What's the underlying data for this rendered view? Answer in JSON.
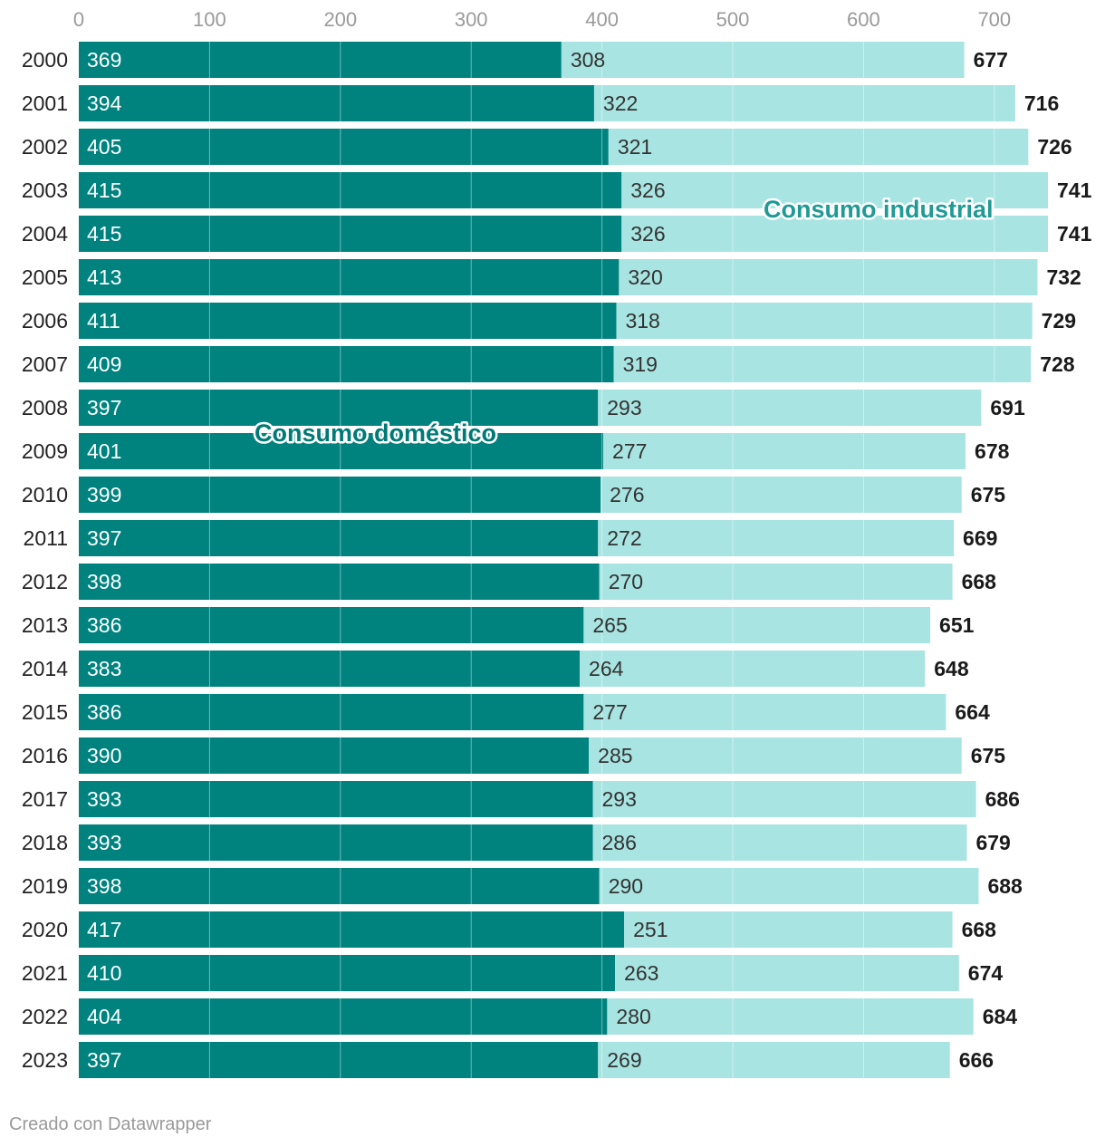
{
  "chart_data": {
    "type": "bar",
    "orientation": "horizontal",
    "stacked": true,
    "categories": [
      "2000",
      "2001",
      "2002",
      "2003",
      "2004",
      "2005",
      "2006",
      "2007",
      "2008",
      "2009",
      "2010",
      "2011",
      "2012",
      "2013",
      "2014",
      "2015",
      "2016",
      "2017",
      "2018",
      "2019",
      "2020",
      "2021",
      "2022",
      "2023"
    ],
    "series": [
      {
        "name": "Consumo doméstico",
        "color": "#00827f",
        "values": [
          369,
          394,
          405,
          415,
          415,
          413,
          411,
          409,
          397,
          401,
          399,
          397,
          398,
          386,
          383,
          386,
          390,
          393,
          393,
          398,
          417,
          410,
          404,
          397
        ]
      },
      {
        "name": "Consumo industrial",
        "color": "#a8e4e1",
        "values": [
          308,
          322,
          321,
          326,
          326,
          320,
          318,
          319,
          293,
          277,
          276,
          272,
          270,
          265,
          264,
          277,
          285,
          293,
          286,
          290,
          251,
          263,
          280,
          269
        ]
      }
    ],
    "totals": [
      677,
      716,
      726,
      741,
      741,
      732,
      729,
      728,
      691,
      678,
      675,
      669,
      668,
      651,
      648,
      664,
      675,
      686,
      679,
      688,
      668,
      674,
      684,
      666
    ],
    "x_ticks": [
      0,
      100,
      200,
      300,
      400,
      500,
      600,
      700
    ],
    "xlim": [
      0,
      750
    ],
    "grid": true,
    "annotations": [
      {
        "text": "Consumo industrial",
        "color": "#1f9a95"
      },
      {
        "text": "Consumo doméstico",
        "color": "#007a76"
      }
    ]
  },
  "footer": {
    "credit": "Creado con Datawrapper"
  }
}
